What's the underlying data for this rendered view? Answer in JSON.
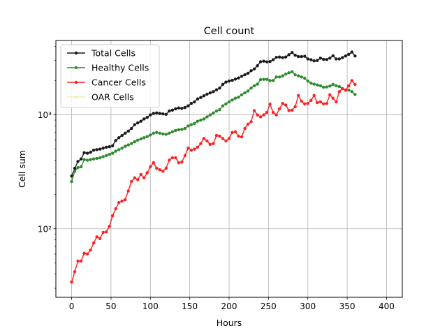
{
  "chart_data": {
    "type": "line",
    "title": "Cell count",
    "xlabel": "Hours",
    "ylabel": "Cell sum",
    "xlim": [
      -20,
      420
    ],
    "ylim": [
      25,
      4500
    ],
    "yscale": "log",
    "grid": true,
    "legend_position": "upper-left",
    "xticks": [
      0,
      50,
      100,
      150,
      200,
      250,
      300,
      350,
      400
    ],
    "xtick_labels": [
      "0",
      "50",
      "100",
      "150",
      "200",
      "250",
      "300",
      "350",
      "400"
    ],
    "yticks": [
      100,
      1000
    ],
    "ytick_labels": [
      "10²",
      "10³"
    ],
    "x_start": 0,
    "x_step": 4,
    "series": [
      {
        "name": "Total Cells",
        "color": "#1a1a1a",
        "values": [
          290,
          340,
          390,
          410,
          465,
          460,
          470,
          490,
          495,
          500,
          510,
          520,
          525,
          535,
          595,
          630,
          660,
          690,
          720,
          760,
          820,
          850,
          880,
          920,
          950,
          1000,
          1030,
          1040,
          1030,
          1020,
          1010,
          1080,
          1100,
          1130,
          1150,
          1140,
          1160,
          1200,
          1260,
          1300,
          1380,
          1420,
          1470,
          1520,
          1560,
          1600,
          1660,
          1720,
          1850,
          1940,
          1980,
          2010,
          2060,
          2110,
          2180,
          2250,
          2320,
          2440,
          2530,
          2700,
          2930,
          2960,
          2920,
          2940,
          3050,
          3200,
          3220,
          3180,
          3220,
          3380,
          3530,
          3340,
          3250,
          3250,
          3270,
          3100,
          3050,
          2980,
          3000,
          3150,
          3070,
          3060,
          3150,
          3300,
          3100,
          3100,
          3180,
          3290,
          3400,
          3560,
          3290
        ]
      },
      {
        "name": "Healthy Cells",
        "color": "#2d8a2d",
        "values": [
          260,
          320,
          345,
          350,
          405,
          400,
          405,
          410,
          415,
          420,
          430,
          440,
          450,
          460,
          480,
          495,
          510,
          530,
          545,
          560,
          580,
          600,
          615,
          630,
          645,
          665,
          690,
          700,
          690,
          680,
          675,
          690,
          710,
          730,
          740,
          745,
          760,
          800,
          820,
          840,
          880,
          900,
          920,
          960,
          1000,
          1040,
          1080,
          1110,
          1200,
          1250,
          1300,
          1350,
          1400,
          1430,
          1500,
          1560,
          1620,
          1720,
          1800,
          1860,
          2040,
          2050,
          2050,
          2000,
          2000,
          2150,
          2150,
          2200,
          2280,
          2340,
          2390,
          2250,
          2200,
          2150,
          2100,
          1980,
          1900,
          1860,
          1830,
          1800,
          1750,
          1760,
          1790,
          1850,
          1800,
          1770,
          1700,
          1650,
          1650,
          1600,
          1510
        ]
      },
      {
        "name": "Cancer Cells",
        "color": "#ff2020",
        "values": [
          34,
          42,
          52,
          52,
          61,
          60,
          65,
          75,
          85,
          82,
          93,
          94,
          105,
          130,
          150,
          170,
          175,
          180,
          215,
          260,
          280,
          270,
          300,
          280,
          310,
          350,
          380,
          340,
          330,
          320,
          340,
          400,
          420,
          420,
          380,
          385,
          440,
          510,
          490,
          500,
          520,
          560,
          620,
          590,
          550,
          560,
          660,
          650,
          620,
          590,
          620,
          700,
          710,
          650,
          640,
          760,
          830,
          870,
          1090,
          1000,
          960,
          1000,
          1050,
          1240,
          1050,
          1000,
          1130,
          1260,
          1220,
          1090,
          1100,
          1180,
          1480,
          1320,
          1250,
          1260,
          1340,
          1480,
          1280,
          1300,
          1250,
          1260,
          1500,
          1400,
          1300,
          1600,
          1700,
          1650,
          1800,
          2000,
          1850
        ]
      },
      {
        "name": "OAR Cells",
        "color": "#f3ecb0",
        "values": []
      }
    ]
  }
}
